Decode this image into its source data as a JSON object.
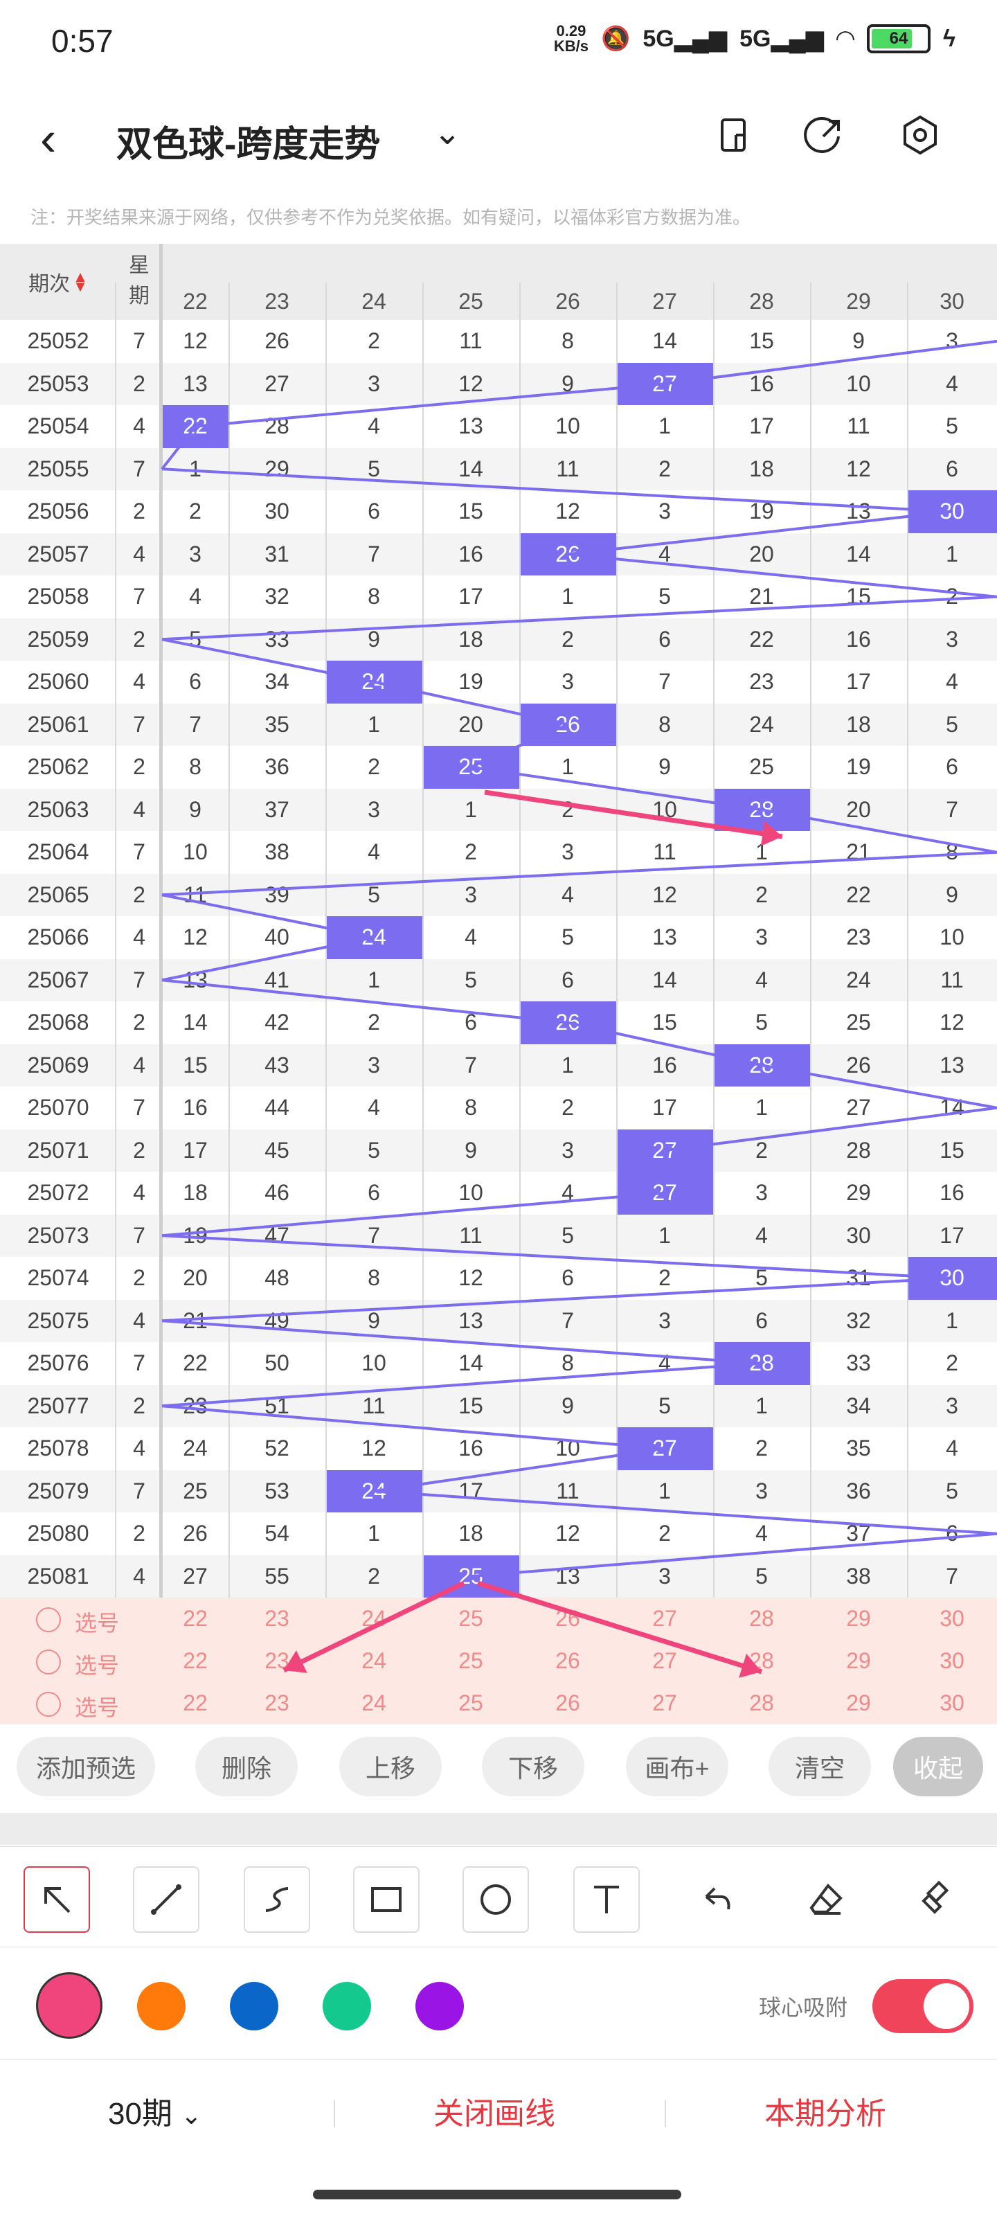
{
  "status_bar": {
    "time": "0:57",
    "net_speed_value": "0.29",
    "net_speed_unit": "KB/s",
    "signal1": "5G",
    "signal2": "5G",
    "battery": "64"
  },
  "header": {
    "title": "双色球-跨度走势"
  },
  "notice": "注：开奖结果来源于网络，仅供参考不作为兑奖依据。如有疑问，以福体彩官方数据为准。",
  "table": {
    "col_period": "期次",
    "col_week_line1": "星",
    "col_week_line2": "期",
    "span_columns": [
      "22",
      "23",
      "24",
      "25",
      "26",
      "27",
      "28",
      "29",
      "30"
    ],
    "rows": [
      {
        "period": "25052",
        "week": "7",
        "values": [
          "12",
          "26",
          "2",
          "11",
          "8",
          "14",
          "15",
          "9",
          "3"
        ],
        "hit_col": -1
      },
      {
        "period": "25053",
        "week": "2",
        "values": [
          "13",
          "27",
          "3",
          "12",
          "9",
          "27",
          "16",
          "10",
          "4"
        ],
        "hit_col": 5
      },
      {
        "period": "25054",
        "week": "4",
        "values": [
          "22",
          "28",
          "4",
          "13",
          "10",
          "1",
          "17",
          "11",
          "5"
        ],
        "hit_col": 0
      },
      {
        "period": "25055",
        "week": "7",
        "values": [
          "1",
          "29",
          "5",
          "14",
          "11",
          "2",
          "18",
          "12",
          "6"
        ],
        "hit_col": -1
      },
      {
        "period": "25056",
        "week": "2",
        "values": [
          "2",
          "30",
          "6",
          "15",
          "12",
          "3",
          "19",
          "13",
          "30"
        ],
        "hit_col": 8
      },
      {
        "period": "25057",
        "week": "4",
        "values": [
          "3",
          "31",
          "7",
          "16",
          "26",
          "4",
          "20",
          "14",
          "1"
        ],
        "hit_col": 4
      },
      {
        "period": "25058",
        "week": "7",
        "values": [
          "4",
          "32",
          "8",
          "17",
          "1",
          "5",
          "21",
          "15",
          "2"
        ],
        "hit_col": -1
      },
      {
        "period": "25059",
        "week": "2",
        "values": [
          "5",
          "33",
          "9",
          "18",
          "2",
          "6",
          "22",
          "16",
          "3"
        ],
        "hit_col": -1
      },
      {
        "period": "25060",
        "week": "4",
        "values": [
          "6",
          "34",
          "24",
          "19",
          "3",
          "7",
          "23",
          "17",
          "4"
        ],
        "hit_col": 2
      },
      {
        "period": "25061",
        "week": "7",
        "values": [
          "7",
          "35",
          "1",
          "20",
          "26",
          "8",
          "24",
          "18",
          "5"
        ],
        "hit_col": 4
      },
      {
        "period": "25062",
        "week": "2",
        "values": [
          "8",
          "36",
          "2",
          "25",
          "1",
          "9",
          "25",
          "19",
          "6"
        ],
        "hit_col": 3
      },
      {
        "period": "25063",
        "week": "4",
        "values": [
          "9",
          "37",
          "3",
          "1",
          "2",
          "10",
          "28",
          "20",
          "7"
        ],
        "hit_col": 6
      },
      {
        "period": "25064",
        "week": "7",
        "values": [
          "10",
          "38",
          "4",
          "2",
          "3",
          "11",
          "1",
          "21",
          "8"
        ],
        "hit_col": -1
      },
      {
        "period": "25065",
        "week": "2",
        "values": [
          "11",
          "39",
          "5",
          "3",
          "4",
          "12",
          "2",
          "22",
          "9"
        ],
        "hit_col": -1
      },
      {
        "period": "25066",
        "week": "4",
        "values": [
          "12",
          "40",
          "24",
          "4",
          "5",
          "13",
          "3",
          "23",
          "10"
        ],
        "hit_col": 2
      },
      {
        "period": "25067",
        "week": "7",
        "values": [
          "13",
          "41",
          "1",
          "5",
          "6",
          "14",
          "4",
          "24",
          "11"
        ],
        "hit_col": -1
      },
      {
        "period": "25068",
        "week": "2",
        "values": [
          "14",
          "42",
          "2",
          "6",
          "26",
          "15",
          "5",
          "25",
          "12"
        ],
        "hit_col": 4
      },
      {
        "period": "25069",
        "week": "4",
        "values": [
          "15",
          "43",
          "3",
          "7",
          "1",
          "16",
          "28",
          "26",
          "13"
        ],
        "hit_col": 6
      },
      {
        "period": "25070",
        "week": "7",
        "values": [
          "16",
          "44",
          "4",
          "8",
          "2",
          "17",
          "1",
          "27",
          "14"
        ],
        "hit_col": -1
      },
      {
        "period": "25071",
        "week": "2",
        "values": [
          "17",
          "45",
          "5",
          "9",
          "3",
          "27",
          "2",
          "28",
          "15"
        ],
        "hit_col": 5
      },
      {
        "period": "25072",
        "week": "4",
        "values": [
          "18",
          "46",
          "6",
          "10",
          "4",
          "27",
          "3",
          "29",
          "16"
        ],
        "hit_col": 5
      },
      {
        "period": "25073",
        "week": "7",
        "values": [
          "19",
          "47",
          "7",
          "11",
          "5",
          "1",
          "4",
          "30",
          "17"
        ],
        "hit_col": -1
      },
      {
        "period": "25074",
        "week": "2",
        "values": [
          "20",
          "48",
          "8",
          "12",
          "6",
          "2",
          "5",
          "31",
          "30"
        ],
        "hit_col": 8
      },
      {
        "period": "25075",
        "week": "4",
        "values": [
          "21",
          "49",
          "9",
          "13",
          "7",
          "3",
          "6",
          "32",
          "1"
        ],
        "hit_col": -1
      },
      {
        "period": "25076",
        "week": "7",
        "values": [
          "22",
          "50",
          "10",
          "14",
          "8",
          "4",
          "28",
          "33",
          "2"
        ],
        "hit_col": 6
      },
      {
        "period": "25077",
        "week": "2",
        "values": [
          "23",
          "51",
          "11",
          "15",
          "9",
          "5",
          "1",
          "34",
          "3"
        ],
        "hit_col": -1
      },
      {
        "period": "25078",
        "week": "4",
        "values": [
          "24",
          "52",
          "12",
          "16",
          "10",
          "27",
          "2",
          "35",
          "4"
        ],
        "hit_col": 5
      },
      {
        "period": "25079",
        "week": "7",
        "values": [
          "25",
          "53",
          "24",
          "17",
          "11",
          "1",
          "3",
          "36",
          "5"
        ],
        "hit_col": 2
      },
      {
        "period": "25080",
        "week": "2",
        "values": [
          "26",
          "54",
          "1",
          "18",
          "12",
          "2",
          "4",
          "37",
          "6"
        ],
        "hit_col": -1
      },
      {
        "period": "25081",
        "week": "4",
        "values": [
          "27",
          "55",
          "2",
          "25",
          "13",
          "3",
          "5",
          "38",
          "7"
        ],
        "hit_col": 3
      }
    ]
  },
  "picker": {
    "label": "选号",
    "rows": 3,
    "values": [
      "22",
      "23",
      "24",
      "25",
      "26",
      "27",
      "28",
      "29",
      "30"
    ]
  },
  "actions": {
    "add": "添加预选",
    "delete": "删除",
    "up": "上移",
    "down": "下移",
    "canvas": "画布+",
    "clear": "清空",
    "collapse": "收起"
  },
  "tools": [
    "arrow-select-icon",
    "line-icon",
    "freehand-icon",
    "rectangle-icon",
    "circle-icon",
    "text-icon",
    "undo-icon",
    "eraser-icon",
    "clear-brush-icon"
  ],
  "colors": {
    "options": [
      "#f0457c",
      "#ff7a0a",
      "#0a66c8",
      "#14c98e",
      "#9a14e6"
    ],
    "selected": "#f0457c",
    "hit_cell": "#7c6cf0",
    "accent_red": "#e8373f"
  },
  "snap": {
    "label": "球心吸附",
    "enabled": true
  },
  "bottom": {
    "period_select": "30期",
    "close_lines": "关闭画线",
    "analysis": "本期分析"
  }
}
